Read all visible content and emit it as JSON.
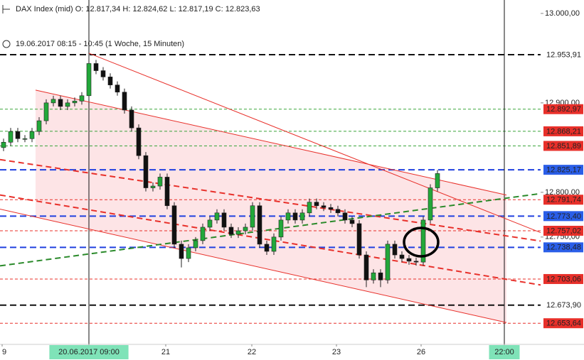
{
  "chart_data": {
    "type": "candlestick",
    "title": "DAX Index (mid)  O: 12.817,34  H: 12.824,62  L: 12.817,19  C: 12.823,63",
    "subtitle": "19.06.2017 08:15 - 10:45   (1 Woche, 15 Minuten)",
    "xlim": [
      0,
      76
    ],
    "ylim": [
      12630,
      13015
    ],
    "xticks": [
      {
        "value": 0.3,
        "label": "9"
      },
      {
        "value": 12.5,
        "label": "20.06.2017 09:00"
      },
      {
        "value": 23.3,
        "label": "21"
      },
      {
        "value": 35.4,
        "label": "22"
      },
      {
        "value": 47.3,
        "label": "23"
      },
      {
        "value": 59.2,
        "label": "26"
      },
      {
        "value": 70.9,
        "label": "22:00"
      }
    ],
    "xmarkers": [
      12.5,
      70.9
    ],
    "yticks": [
      {
        "value": 13000,
        "label": "13.000,00"
      },
      {
        "value": 12900,
        "label": "12.900,00"
      },
      {
        "value": 12800,
        "label": "12.800,00"
      },
      {
        "value": 12750,
        "label": "12.750,00"
      }
    ],
    "up_color": "#22a83a",
    "down_color": "#111111",
    "x": [
      0.5,
      1.5,
      2.5,
      3.5,
      4.5,
      5.5,
      6.5,
      7.5,
      8.5,
      9.5,
      10.5,
      11.5,
      12.5,
      13.5,
      14.5,
      15.5,
      16.5,
      17.5,
      18.5,
      19.5,
      20.5,
      21.5,
      22.5,
      23.5,
      24.5,
      25.5,
      26.5,
      27.5,
      28.5,
      29.5,
      30.5,
      31.5,
      32.5,
      33.5,
      34.5,
      35.5,
      36.5,
      37.5,
      38.5,
      39.5,
      40.5,
      41.5,
      42.5,
      43.5,
      44.5,
      45.5,
      46.5,
      47.5,
      48.5,
      49.5,
      50.5,
      51.5,
      52.5,
      53.5,
      54.5,
      55.5,
      56.5,
      57.5,
      58.5,
      59.5,
      60.5,
      61.5
    ],
    "open": [
      12850,
      12856,
      12868,
      12860,
      12860,
      12868,
      12880,
      12900,
      12904,
      12896,
      12900,
      12902,
      12908,
      12944,
      12936,
      12929,
      12920,
      12912,
      12892,
      12872,
      12841,
      12805,
      12807,
      12817,
      12785,
      12742,
      12726,
      12738,
      12746,
      12761,
      12769,
      12777,
      12761,
      12753,
      12757,
      12761,
      12785,
      12742,
      12734,
      12750,
      12769,
      12777,
      12769,
      12777,
      12789,
      12785,
      12783,
      12781,
      12777,
      12769,
      12765,
      12730,
      12702,
      12710,
      12702,
      12742,
      12730,
      12726,
      12723,
      12722,
      12769,
      12805
    ],
    "high": [
      12860,
      12872,
      12872,
      12864,
      12872,
      12884,
      12904,
      12908,
      12908,
      12904,
      12906,
      12912,
      12954,
      12948,
      12940,
      12933,
      12924,
      12916,
      12896,
      12876,
      12845,
      12811,
      12821,
      12821,
      12789,
      12746,
      12742,
      12750,
      12765,
      12773,
      12781,
      12781,
      12765,
      12761,
      12765,
      12789,
      12789,
      12746,
      12754,
      12773,
      12781,
      12781,
      12781,
      12793,
      12793,
      12789,
      12787,
      12785,
      12781,
      12773,
      12769,
      12734,
      12714,
      12714,
      12746,
      12746,
      12734,
      12730,
      12727,
      12773,
      12809,
      12825
    ],
    "low": [
      12846,
      12852,
      12856,
      12856,
      12856,
      12864,
      12876,
      12896,
      12892,
      12892,
      12896,
      12898,
      12904,
      12932,
      12925,
      12916,
      12908,
      12888,
      12868,
      12837,
      12801,
      12801,
      12803,
      12781,
      12738,
      12716,
      12722,
      12734,
      12742,
      12757,
      12765,
      12757,
      12749,
      12749,
      12753,
      12757,
      12738,
      12730,
      12730,
      12746,
      12765,
      12765,
      12765,
      12773,
      12781,
      12779,
      12777,
      12773,
      12765,
      12761,
      12726,
      12694,
      12698,
      12694,
      12698,
      12726,
      12722,
      12719,
      12718,
      12718,
      12765,
      12801
    ],
    "close": [
      12856,
      12868,
      12860,
      12860,
      12868,
      12880,
      12900,
      12904,
      12896,
      12900,
      12902,
      12908,
      12944,
      12936,
      12929,
      12920,
      12912,
      12892,
      12872,
      12841,
      12805,
      12807,
      12817,
      12785,
      12742,
      12726,
      12738,
      12746,
      12761,
      12769,
      12777,
      12761,
      12753,
      12757,
      12761,
      12785,
      12742,
      12734,
      12750,
      12769,
      12777,
      12769,
      12777,
      12789,
      12785,
      12783,
      12781,
      12777,
      12769,
      12765,
      12730,
      12702,
      12710,
      12702,
      12742,
      12730,
      12726,
      12723,
      12722,
      12769,
      12805,
      12821
    ],
    "channel": {
      "color": "#fde4e6",
      "x": [
        5,
        71.2
      ],
      "upper": [
        12914.3,
        12797
      ],
      "lower": [
        12772.5,
        12654.4
      ]
    },
    "trendlines": [
      {
        "color": "#e8302a",
        "dash": false,
        "x": [
          12.5,
          76
        ],
        "y": [
          12955.5,
          12755
        ]
      },
      {
        "color": "#e8302a",
        "dash": false,
        "x": [
          5,
          71.2
        ],
        "y": [
          12914.3,
          12797
        ]
      },
      {
        "color": "#e8302a",
        "dash": false,
        "x": [
          0,
          71.2
        ],
        "y": [
          12781.2,
          12654.4
        ]
      },
      {
        "color": "#e8302a",
        "dash": true,
        "x": [
          0,
          76
        ],
        "y": [
          12836.6,
          12745.5
        ]
      },
      {
        "color": "#e8302a",
        "dash": true,
        "x": [
          0,
          76
        ],
        "y": [
          12797,
          12696.4
        ]
      },
      {
        "color": "#2a8a2a",
        "dash": true,
        "x": [
          0,
          76
        ],
        "y": [
          12717.8,
          12798.6
        ]
      }
    ],
    "levels": [
      {
        "value": 12953.91,
        "label": "12.953,91",
        "color": "#111111",
        "width": 2,
        "label_bg": "#ffffff",
        "label_color": "#111111"
      },
      {
        "value": 12892.97,
        "label": "12.892,97",
        "color": "#3aa53a",
        "width": 1,
        "label_bg": "#e8302a",
        "label_color": "#ffffff"
      },
      {
        "value": 12868.21,
        "label": "12.868,21",
        "color": "#3aa53a",
        "width": 1,
        "label_bg": "#e8302a",
        "label_color": "#ffffff"
      },
      {
        "value": 12851.89,
        "label": "12.851,89",
        "color": "#3aa53a",
        "width": 1,
        "label_bg": "#e8302a",
        "label_color": "#ffffff"
      },
      {
        "value": 12825.17,
        "label": "12.825,17",
        "color": "#2040e0",
        "width": 2,
        "label_bg": "#2a5ee8",
        "label_color": "#ffffff"
      },
      {
        "value": 12791.74,
        "label": "12.791,74",
        "color": "#e8302a",
        "width": 1,
        "label_bg": "#e8302a",
        "label_color": "#ffffff"
      },
      {
        "value": 12773.4,
        "label": "12.773,40",
        "color": "#2040e0",
        "width": 2,
        "label_bg": "#2a5ee8",
        "label_color": "#ffffff"
      },
      {
        "value": 12757.02,
        "label": "12.757,02",
        "color": "#e8302a",
        "width": 1,
        "label_bg": "#e8302a",
        "label_color": "#ffffff"
      },
      {
        "value": 12738.48,
        "label": "12.738,48",
        "color": "#2040e0",
        "width": 2,
        "label_bg": "#2a5ee8",
        "label_color": "#ffffff"
      },
      {
        "value": 12703.06,
        "label": "12.703,06",
        "color": "#e8302a",
        "width": 1,
        "label_bg": "#e8302a",
        "label_color": "#ffffff"
      },
      {
        "value": 12673.9,
        "label": "12.673,90",
        "color": "#111111",
        "width": 2,
        "label_bg": "#ffffff",
        "label_color": "#111111"
      },
      {
        "value": 12653.64,
        "label": "12.653,64",
        "color": "#e8302a",
        "width": 1,
        "label_bg": "#e8302a",
        "label_color": "#ffffff"
      }
    ]
  }
}
